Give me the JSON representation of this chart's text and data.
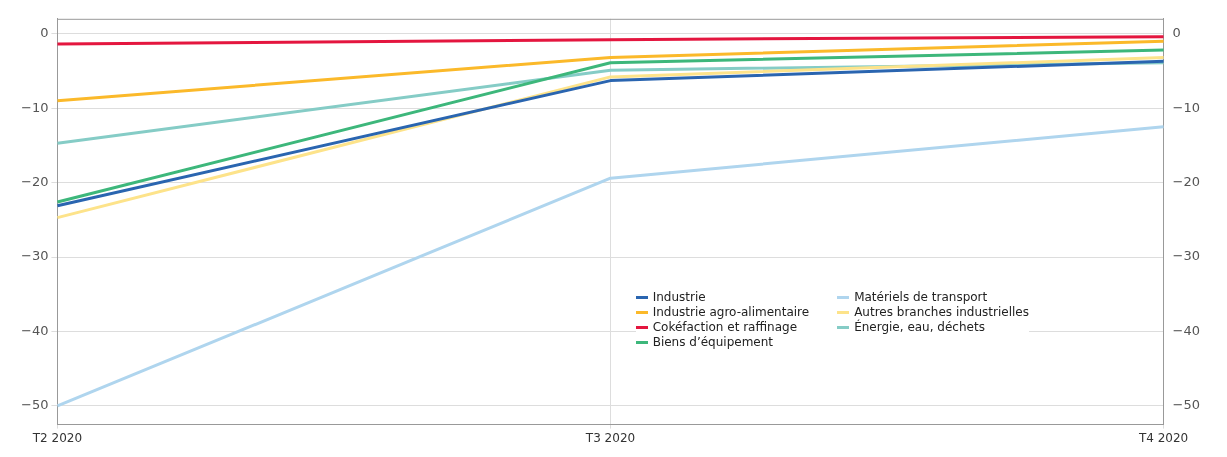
{
  "chart_data": {
    "type": "line",
    "categories": [
      "T2 2020",
      "T3 2020",
      "T4 2020"
    ],
    "series": [
      {
        "name": "Industrie",
        "color": "#2a65b0",
        "values": [
          -23.1,
          -6.3,
          -3.7
        ]
      },
      {
        "name": "Industrie agro-alimentaire",
        "color": "#fbb92a",
        "values": [
          -9.0,
          -3.2,
          -1.0
        ]
      },
      {
        "name": "Cokéfaction et raffinage",
        "color": "#e4163f",
        "values": [
          -1.4,
          -0.8,
          -0.4
        ]
      },
      {
        "name": "Biens d’équipement",
        "color": "#3db77b",
        "values": [
          -22.6,
          -3.9,
          -2.2
        ]
      },
      {
        "name": "Matériels de transport",
        "color": "#afd5ee",
        "values": [
          -50,
          -19.4,
          -12.5
        ]
      },
      {
        "name": "Autres branches industrielles",
        "color": "#fde38a",
        "values": [
          -24.7,
          -5.8,
          -3.2
        ]
      },
      {
        "name": "Énergie, eau, déchets",
        "color": "#85ccc6",
        "values": [
          -14.7,
          -4.9,
          -3.9
        ]
      }
    ],
    "ylim": [
      -52.5,
      2
    ],
    "yticks": [
      0,
      -10,
      -20,
      -30,
      -40,
      -50
    ],
    "y2lim": [
      -52.5,
      2
    ],
    "y2ticks": [
      0,
      -10,
      -20,
      -30,
      -40,
      -50
    ],
    "grid": true,
    "legend": "bottom right",
    "marker": "none",
    "line_style": "solid"
  }
}
